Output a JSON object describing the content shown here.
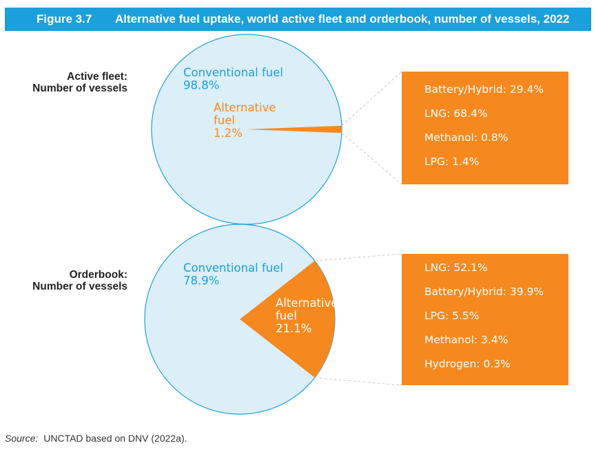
{
  "header": {
    "figure_label": "Figure 3.7",
    "title": "Alternative fuel uptake, world active fleet and orderbook, number of vessels, 2022"
  },
  "colors": {
    "header_bg": "#1aa0da",
    "conventional_fill": "#dceef8",
    "conventional_stroke": "#1aa0da",
    "conventional_text": "#1aa0da",
    "alternative": "#f5891f",
    "box_text": "#ffffff"
  },
  "chart_data": [
    {
      "type": "pie",
      "row_label": [
        "Active fleet:",
        "Number of vessels"
      ],
      "slices": [
        {
          "label": [
            "Conventional fuel"
          ],
          "value": 98.8,
          "value_label": "98.8%"
        },
        {
          "label": [
            "Alternative",
            "fuel"
          ],
          "value": 1.2,
          "value_label": "1.2%"
        }
      ],
      "breakdown": [
        {
          "label": "Battery/Hybrid: 29.4%",
          "name": "Battery/Hybrid",
          "value": 29.4
        },
        {
          "label": "LNG: 68.4%",
          "name": "LNG",
          "value": 68.4
        },
        {
          "label": "Methanol: 0.8%",
          "name": "Methanol",
          "value": 0.8
        },
        {
          "label": "LPG: 1.4%",
          "name": "LPG",
          "value": 1.4
        }
      ]
    },
    {
      "type": "pie",
      "row_label": [
        "Orderbook:",
        "Number of vessels"
      ],
      "slices": [
        {
          "label": [
            "Conventional fuel"
          ],
          "value": 78.9,
          "value_label": "78.9%"
        },
        {
          "label": [
            "Alternative",
            "fuel"
          ],
          "value": 21.1,
          "value_label": "21.1%"
        }
      ],
      "breakdown": [
        {
          "label": "LNG: 52.1%",
          "name": "LNG",
          "value": 52.1
        },
        {
          "label": "Battery/Hybrid: 39.9%",
          "name": "Battery/Hybrid",
          "value": 39.9
        },
        {
          "label": "LPG: 5.5%",
          "name": "LPG",
          "value": 5.5
        },
        {
          "label": "Methanol: 3.4%",
          "name": "Methanol",
          "value": 3.4
        },
        {
          "label": "Hydrogen: 0.3%",
          "name": "Hydrogen",
          "value": 0.3
        }
      ]
    }
  ],
  "source": {
    "label": "Source:",
    "text": "UNCTAD based on DNV (2022a)."
  }
}
